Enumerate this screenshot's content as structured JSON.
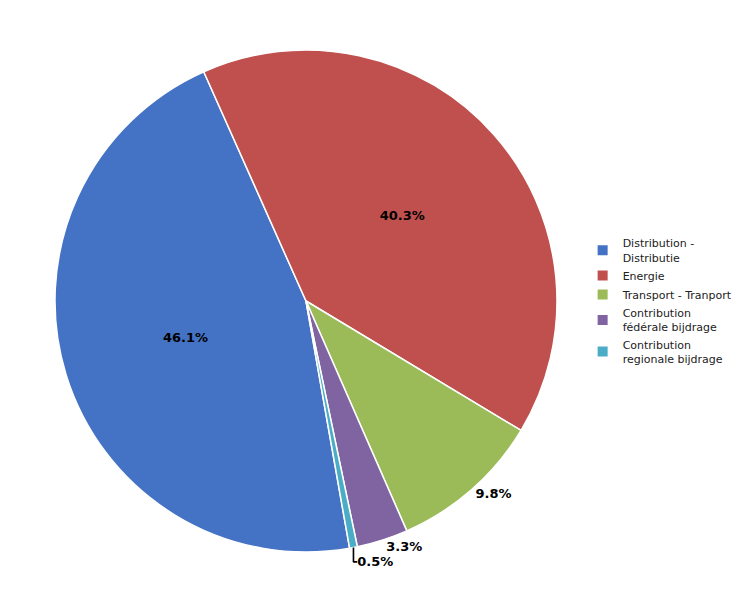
{
  "chart_data": {
    "type": "pie",
    "categories": [
      "Distribution -\nDistributie",
      "Energie",
      "Transport - Tranport",
      "Contribution\nfédérale bijdrage",
      "Contribution\nregionale bijdrage"
    ],
    "values": [
      46.1,
      40.3,
      9.8,
      3.3,
      0.5
    ],
    "value_labels": [
      "46.1%",
      "40.3%",
      "9.8%",
      "3.3%",
      "0.5%"
    ],
    "colors": [
      "#4472C4",
      "#C0504D",
      "#9BBB59",
      "#8064A2",
      "#4BACC6"
    ],
    "data_labels": true,
    "legend": "right"
  }
}
